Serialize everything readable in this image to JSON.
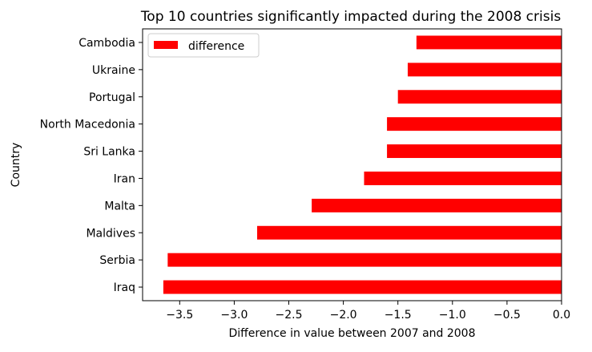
{
  "chart_data": {
    "type": "bar",
    "orientation": "horizontal",
    "title": "Top 10 countries significantly impacted during the 2008 crisis",
    "xlabel": "Difference in value between 2007 and 2008",
    "ylabel": "Country",
    "categories": [
      "Cambodia",
      "Ukraine",
      "Portugal",
      "North Macedonia",
      "Sri Lanka",
      "Iran",
      "Malta",
      "Maldives",
      "Serbia",
      "Iraq"
    ],
    "series": [
      {
        "name": "difference",
        "color": "#ff0000",
        "values": [
          -1.33,
          -1.41,
          -1.5,
          -1.6,
          -1.6,
          -1.81,
          -2.29,
          -2.79,
          -3.61,
          -3.65
        ]
      }
    ],
    "xlim": [
      -3.84,
      0.0
    ],
    "xticks": [
      -3.5,
      -3.0,
      -2.5,
      -2.0,
      -1.5,
      -1.0,
      -0.5,
      0.0
    ],
    "xtick_labels": [
      "−3.5",
      "−3.0",
      "−2.5",
      "−2.0",
      "−1.5",
      "−1.0",
      "−0.5",
      "0.0"
    ],
    "grid": false,
    "legend_position": "top-left"
  }
}
